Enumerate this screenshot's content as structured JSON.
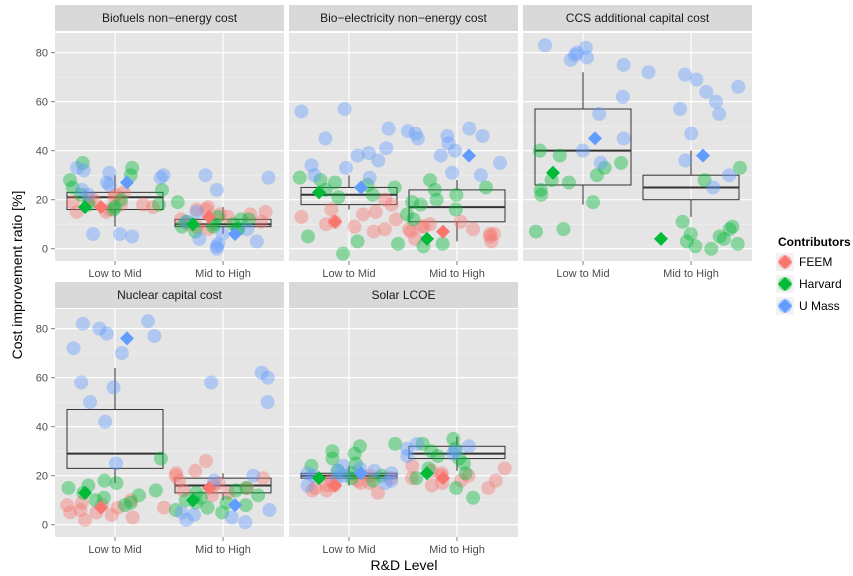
{
  "figure": {
    "x_axis_title": "R&D Level",
    "y_axis_title": "Cost improvement ratio [%]"
  },
  "legend": {
    "title": "Contributors",
    "items": [
      {
        "label": "FEEM",
        "color": "#F8766D"
      },
      {
        "label": "Harvard",
        "color": "#00BA38"
      },
      {
        "label": "U Mass",
        "color": "#619CFF"
      }
    ]
  },
  "chart_data": {
    "type": "scatter",
    "layout": "facet-wrap with jittered points, boxplots and contributor means",
    "categories": [
      "Low to Mid",
      "Mid to High"
    ],
    "ylim": [
      -5,
      88
    ],
    "yticks": [
      0,
      20,
      40,
      60,
      80
    ],
    "grid": true,
    "legend_position": "right",
    "panels": [
      {
        "title": "Biofuels non−energy cost",
        "boxes": [
          {
            "category": "Low to Mid",
            "min": 9,
            "q1": 16,
            "median": 21,
            "q3": 23,
            "max": 30
          },
          {
            "category": "Mid to High",
            "min": 6,
            "q1": 9,
            "median": 10,
            "q3": 12,
            "max": 17
          }
        ],
        "means": [
          {
            "category": "Low to Mid",
            "FEEM": 17,
            "Harvard": 17,
            "U Mass": 27
          },
          {
            "category": "Mid to High",
            "FEEM": 13,
            "Harvard": 10,
            "U Mass": 6
          }
        ],
        "points": [
          {
            "category": "Low to Mid",
            "FEEM": [
              21,
              18,
              15,
              20,
              16,
              22,
              19,
              17,
              23,
              15,
              20,
              18
            ],
            "Harvard": [
              30,
              25,
              17,
              18,
              33,
              22,
              20,
              16,
              35,
              28,
              18,
              24
            ],
            "U Mass": [
              33,
              31,
              29,
              32,
              27,
              6,
              5,
              6,
              24,
              30,
              26,
              22
            ]
          },
          {
            "category": "Mid to High",
            "FEEM": [
              13,
              16,
              10,
              14,
              8,
              17,
              12,
              15,
              9,
              11,
              14,
              16
            ],
            "Harvard": [
              10,
              9,
              12,
              8,
              11,
              7,
              13,
              9,
              19,
              10,
              12,
              8
            ],
            "U Mass": [
              29,
              30,
              24,
              6,
              1,
              3,
              2,
              0,
              4,
              15,
              8,
              11
            ]
          }
        ]
      },
      {
        "title": "Bio−electricity non−energy cost",
        "boxes": [
          {
            "category": "Low to Mid",
            "min": 16,
            "q1": 18,
            "median": 22,
            "q3": 25,
            "max": 30
          },
          {
            "category": "Mid to High",
            "min": 3,
            "q1": 11,
            "median": 17,
            "q3": 24,
            "max": 28
          }
        ],
        "means": [
          {
            "category": "Low to Mid",
            "FEEM": 11,
            "Harvard": 23,
            "U Mass": 25
          },
          {
            "category": "Mid to High",
            "FEEM": 7,
            "Harvard": 4,
            "U Mass": 38
          }
        ],
        "points": [
          {
            "category": "Low to Mid",
            "FEEM": [
              10,
              15,
              8,
              12,
              18,
              20,
              7,
              14,
              9,
              13,
              16,
              11
            ],
            "Harvard": [
              28,
              21,
              26,
              22,
              24,
              25,
              29,
              27,
              3,
              -2,
              5,
              2
            ],
            "U Mass": [
              57,
              41,
              38,
              33,
              34,
              36,
              49,
              45,
              56,
              30,
              29,
              39
            ]
          },
          {
            "category": "Mid to High",
            "FEEM": [
              8,
              6,
              10,
              5,
              9,
              7,
              4,
              8,
              11,
              6,
              3,
              9
            ],
            "Harvard": [
              22,
              19,
              24,
              16,
              12,
              2,
              28,
              20,
              25,
              18,
              1,
              14
            ],
            "U Mass": [
              49,
              47,
              46,
              45,
              40,
              43,
              48,
              46,
              31,
              30,
              38,
              35
            ]
          }
        ]
      },
      {
        "title": "CCS additional capital cost",
        "boxes": [
          {
            "category": "Low to Mid",
            "min": 18,
            "q1": 26,
            "median": 40,
            "q3": 57,
            "max": 72
          },
          {
            "category": "Mid to High",
            "min": 13,
            "q1": 20,
            "median": 25,
            "q3": 30,
            "max": 40
          }
        ],
        "means": [
          {
            "category": "Low to Mid",
            "Harvard": 31,
            "U Mass": 45
          },
          {
            "category": "Mid to High",
            "Harvard": 4,
            "U Mass": 38
          }
        ],
        "points": [
          {
            "category": "Low to Mid",
            "Harvard": [
              33,
              30,
              38,
              27,
              24,
              35,
              22,
              40,
              28,
              8,
              7,
              19
            ],
            "U Mass": [
              80,
              77,
              78,
              75,
              82,
              79,
              83,
              62,
              55,
              40,
              45,
              35
            ]
          },
          {
            "category": "Mid to High",
            "Harvard": [
              3,
              2,
              8,
              11,
              6,
              0,
              5,
              9,
              1,
              33,
              28,
              4
            ],
            "U Mass": [
              71,
              72,
              66,
              69,
              64,
              57,
              60,
              55,
              47,
              36,
              30,
              25
            ]
          }
        ]
      },
      {
        "title": "Nuclear capital cost",
        "boxes": [
          {
            "category": "Low to Mid",
            "min": 17,
            "q1": 23,
            "median": 29,
            "q3": 47,
            "max": 64
          },
          {
            "category": "Mid to High",
            "min": 10,
            "q1": 13,
            "median": 16,
            "q3": 19,
            "max": 21
          }
        ],
        "means": [
          {
            "category": "Low to Mid",
            "FEEM": 7,
            "Harvard": 13,
            "U Mass": 76
          },
          {
            "category": "Mid to High",
            "FEEM": 15,
            "Harvard": 10,
            "U Mass": 8
          }
        ],
        "points": [
          {
            "category": "Low to Mid",
            "FEEM": [
              5,
              8,
              4,
              7,
              10,
              6,
              3,
              9,
              2,
              7,
              5,
              8
            ],
            "Harvard": [
              27,
              17,
              15,
              11,
              13,
              9,
              16,
              12,
              10,
              14,
              8,
              18
            ],
            "U Mass": [
              83,
              82,
              80,
              78,
              77,
              70,
              72,
              58,
              56,
              50,
              42,
              25
            ]
          },
          {
            "category": "Mid to High",
            "FEEM": [
              26,
              20,
              18,
              15,
              17,
              13,
              19,
              14,
              16,
              22,
              12,
              21
            ],
            "Harvard": [
              10,
              8,
              12,
              6,
              9,
              11,
              7,
              13,
              15,
              5,
              9,
              14
            ],
            "U Mass": [
              62,
              60,
              58,
              50,
              20,
              18,
              5,
              4,
              2,
              1,
              3,
              6
            ]
          }
        ]
      },
      {
        "title": "Solar LCOE",
        "boxes": [
          {
            "category": "Low to Mid",
            "min": 16,
            "q1": 19,
            "median": 20,
            "q3": 21,
            "max": 24
          },
          {
            "category": "Mid to High",
            "min": 22,
            "q1": 27,
            "median": 29,
            "q3": 32,
            "max": 36
          }
        ],
        "means": [
          {
            "category": "Low to Mid",
            "FEEM": 16,
            "Harvard": 19,
            "U Mass": 21
          },
          {
            "category": "Mid to High",
            "FEEM": 19,
            "Harvard": 21
          }
        ],
        "points": [
          {
            "category": "Low to Mid",
            "FEEM": [
              14,
              16,
              18,
              15,
              19,
              17,
              13,
              20,
              16,
              18,
              14,
              17
            ],
            "Harvard": [
              33,
              32,
              30,
              27,
              29,
              25,
              24,
              22,
              20,
              18,
              19,
              21
            ],
            "U Mass": [
              23,
              22,
              21,
              20,
              19,
              18,
              22,
              21,
              20,
              17,
              24,
              16
            ]
          },
          {
            "category": "Mid to High",
            "FEEM": [
              18,
              20,
              16,
              22,
              19,
              17,
              21,
              23,
              15,
              20,
              18,
              24
            ],
            "Harvard": [
              35,
              33,
              31,
              28,
              30,
              27,
              25,
              23,
              21,
              11,
              15,
              19
            ],
            "U Mass": [
              31,
              30,
              29,
              28,
              32,
              33
            ]
          }
        ]
      }
    ]
  }
}
